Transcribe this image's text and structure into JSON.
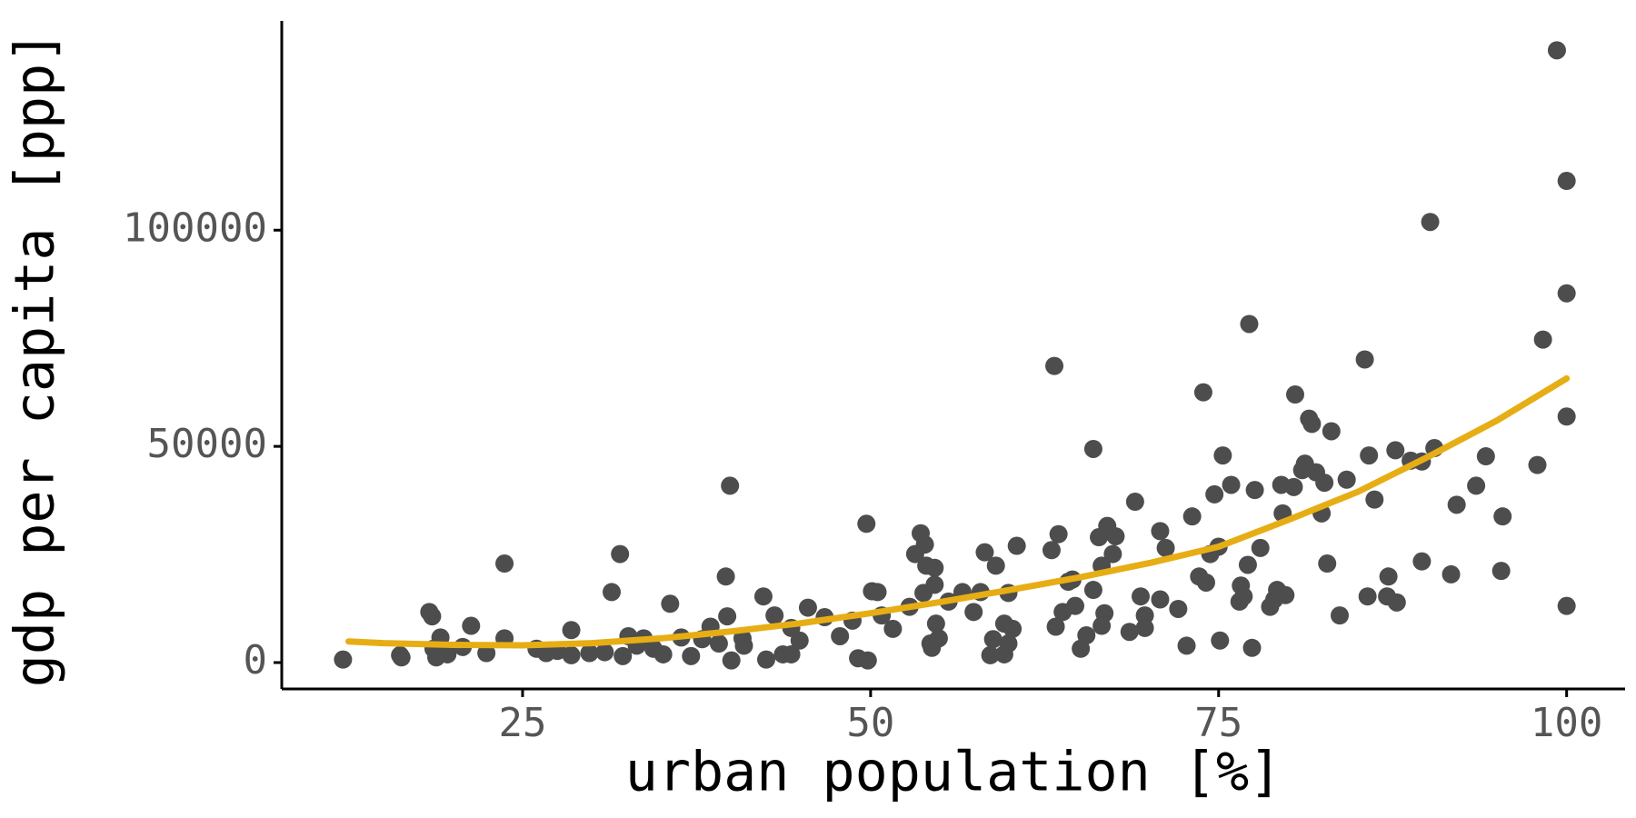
{
  "chart_data": {
    "type": "scatter",
    "x_label": "urban population [%]",
    "y_label": "gdp per capita [ppp]",
    "xlim": [
      7.7,
      104.2
    ],
    "ylim": [
      -6100,
      148400
    ],
    "xticks": [
      25,
      50,
      75,
      100
    ],
    "yticks": [
      0,
      50000,
      100000
    ],
    "color": "#4d4d4d",
    "x": [
      12.1,
      16.2,
      16.3,
      18.3,
      18.5,
      18.8,
      19.1,
      18.6,
      19.6,
      20.7,
      21.3,
      22.4,
      23.7,
      23.7,
      26,
      26.7,
      27.5,
      28.5,
      28.5,
      29.8,
      30.9,
      31.4,
      32,
      32.2,
      32.6,
      33.2,
      33.7,
      34.4,
      35.1,
      35.6,
      36.4,
      37.1,
      37.9,
      38.5,
      39.1,
      39.6,
      39.7,
      39.9,
      40,
      40.8,
      40.9,
      42.3,
      42.5,
      43.1,
      43.7,
      44.3,
      44.3,
      44.9,
      45.5,
      46.7,
      47.8,
      48.7,
      49.1,
      49.8,
      49.7,
      50.1,
      50.5,
      50.8,
      51.6,
      52.8,
      53.2,
      53.6,
      53.9,
      53.8,
      54,
      54.6,
      54.3,
      54.4,
      54.7,
      54.6,
      54.9,
      55.6,
      56.6,
      57.4,
      57.9,
      58.2,
      58.6,
      58.8,
      59,
      59.6,
      59.6,
      59.9,
      60.2,
      60.5,
      59.9,
      63,
      63.3,
      63.2,
      63.5,
      63.8,
      64.2,
      64.7,
      64.5,
      65.1,
      65.5,
      66,
      66,
      66.4,
      66.6,
      66.8,
      67,
      66.6,
      67.4,
      67.6,
      68.6,
      69,
      69.4,
      69.7,
      69.7,
      70.8,
      70.8,
      71.2,
      72.1,
      72.7,
      73.1,
      73.6,
      73.9,
      74.1,
      74.4,
      74.7,
      75,
      75.1,
      75.3,
      75.9,
      76.5,
      76.6,
      76.8,
      77.2,
      77.1,
      77.4,
      77.6,
      78,
      78.7,
      79,
      79.2,
      79.5,
      79.6,
      79.8,
      80.4,
      80.5,
      81,
      81.2,
      81.5,
      81.7,
      82,
      82.4,
      82.6,
      82.8,
      83.1,
      83.7,
      84.2,
      85.5,
      85.7,
      85.8,
      86.2,
      87.1,
      87.2,
      87.7,
      87.8,
      88.8,
      89.6,
      89.6,
      90.2,
      90.5,
      92.1,
      91.7,
      93.5,
      94.2,
      95.4,
      95.3,
      97.9,
      98.3,
      99.3,
      100,
      100,
      100,
      100
    ],
    "values": [
      700,
      1700,
      1200,
      11700,
      10700,
      1200,
      5800,
      3200,
      1900,
      3600,
      8500,
      2200,
      5600,
      22900,
      3200,
      2200,
      2700,
      7500,
      1700,
      2200,
      2400,
      16300,
      25100,
      1500,
      6100,
      3900,
      5600,
      3200,
      1900,
      13600,
      5800,
      1500,
      5400,
      8300,
      4400,
      19900,
      10700,
      40900,
      500,
      5600,
      3900,
      15300,
      700,
      10900,
      1900,
      8000,
      1900,
      5100,
      12700,
      10500,
      6100,
      9700,
      1000,
      500,
      32100,
      16500,
      16300,
      10900,
      7800,
      12900,
      25100,
      29900,
      27300,
      16100,
      22400,
      21900,
      4400,
      3400,
      9000,
      18000,
      5600,
      14100,
      16300,
      11700,
      16300,
      25500,
      1700,
      5400,
      22400,
      9000,
      1900,
      4400,
      7800,
      27000,
      16100,
      26000,
      8300,
      68600,
      29700,
      11700,
      18700,
      13100,
      19200,
      3200,
      6300,
      49400,
      16800,
      29000,
      22400,
      11400,
      31600,
      8500,
      25100,
      29200,
      7100,
      37200,
      15300,
      10900,
      8000,
      30400,
      14600,
      26500,
      12400,
      3900,
      33800,
      19900,
      62500,
      18500,
      25100,
      38900,
      26800,
      5100,
      47900,
      41100,
      14100,
      17800,
      15300,
      78300,
      22600,
      3400,
      39900,
      26500,
      12900,
      14600,
      16800,
      41100,
      34500,
      15600,
      40600,
      62000,
      44500,
      46000,
      56400,
      55200,
      44000,
      34500,
      41600,
      22900,
      53500,
      10900,
      42300,
      70100,
      15300,
      47900,
      37700,
      15300,
      19900,
      49100,
      13900,
      46700,
      46500,
      23400,
      101900,
      49600,
      36500,
      20400,
      40900,
      47700,
      33800,
      21200,
      45700,
      74700,
      141600,
      111400,
      85400,
      56900,
      13100
    ],
    "fit": {
      "color": "#e7ad14",
      "x": [
        12.5,
        15,
        20,
        25,
        30,
        35,
        40,
        45,
        50,
        55,
        60,
        65,
        70,
        75,
        80,
        85,
        90,
        95,
        100
      ],
      "values": [
        4900,
        4500,
        4100,
        4000,
        4500,
        5600,
        7200,
        9100,
        11400,
        14000,
        16800,
        19700,
        23000,
        26800,
        33000,
        39500,
        47500,
        56000,
        65700
      ]
    }
  }
}
